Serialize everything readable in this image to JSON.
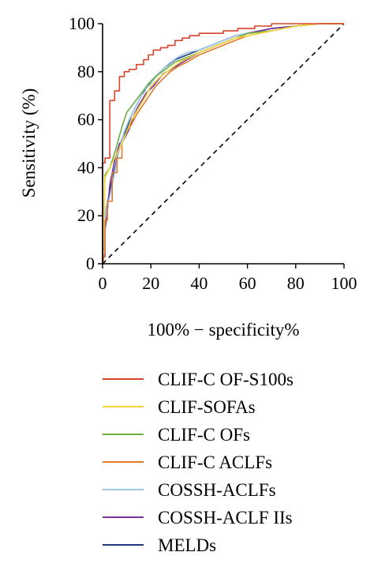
{
  "chart_data": {
    "type": "line",
    "title": "",
    "xlabel": "100% − specificity%",
    "ylabel": "Sensitivity (%)",
    "xlim": [
      0,
      100
    ],
    "ylim": [
      0,
      100
    ],
    "xticks": [
      "0",
      "20",
      "40",
      "60",
      "80",
      "100"
    ],
    "yticks": [
      "0",
      "20",
      "40",
      "60",
      "80",
      "100"
    ],
    "grid": false,
    "legend_position": "bottom",
    "reference_line": {
      "x": [
        0,
        100
      ],
      "y": [
        0,
        100
      ],
      "style": "dashed",
      "color": "#000000"
    },
    "series": [
      {
        "name": "CLIF-C OF-S100s",
        "color": "#D9442B",
        "x": [
          0,
          0,
          1,
          1,
          3,
          3,
          5,
          5,
          7,
          7,
          9,
          9,
          11,
          11,
          14,
          14,
          17,
          17,
          19,
          19,
          21,
          21,
          24,
          24,
          27,
          27,
          30,
          30,
          33,
          33,
          36,
          36,
          40,
          40,
          45,
          45,
          50,
          50,
          56,
          56,
          63,
          63,
          70,
          70,
          80,
          80,
          100
        ],
        "y": [
          0,
          42,
          42,
          44,
          44,
          68,
          68,
          72,
          72,
          78,
          78,
          80,
          80,
          81,
          81,
          83,
          83,
          85,
          85,
          87,
          87,
          89,
          89,
          90,
          90,
          91,
          91,
          93,
          93,
          94,
          94,
          95,
          95,
          96,
          96,
          96,
          96,
          97,
          97,
          98,
          98,
          99,
          99,
          100,
          100,
          100,
          100
        ]
      },
      {
        "name": "CLIF-SOFAs",
        "color": "#F2D43A",
        "x": [
          0,
          1,
          3,
          5,
          8,
          10,
          12,
          15,
          18,
          20,
          24,
          28,
          32,
          36,
          40,
          45,
          50,
          55,
          60,
          70,
          80,
          90,
          100
        ],
        "y": [
          0,
          36,
          40,
          44,
          50,
          55,
          60,
          65,
          70,
          74,
          78,
          81,
          84,
          86,
          88,
          90,
          92,
          94,
          95,
          97,
          99,
          100,
          100
        ]
      },
      {
        "name": "CLIF-C OFs",
        "color": "#6AAE45",
        "x": [
          0,
          1,
          3,
          5,
          8,
          10,
          13,
          16,
          19,
          22,
          26,
          30,
          35,
          40,
          45,
          50,
          55,
          60,
          70,
          80,
          90,
          100
        ],
        "y": [
          0,
          37,
          40,
          46,
          57,
          63,
          67,
          71,
          75,
          78,
          81,
          84,
          86,
          88,
          90,
          92,
          94,
          96,
          97,
          99,
          100,
          100
        ]
      },
      {
        "name": "CLIF-C ACLFs",
        "color": "#E07B2E",
        "x": [
          0,
          1,
          1,
          2,
          2,
          4,
          4,
          6,
          6,
          8,
          8,
          10,
          12,
          14,
          16,
          18,
          20,
          22,
          25,
          28,
          31,
          35,
          40,
          45,
          50,
          55,
          60,
          65,
          70,
          80,
          90,
          100
        ],
        "y": [
          0,
          5,
          18,
          18,
          26,
          26,
          38,
          38,
          44,
          44,
          50,
          55,
          58,
          62,
          65,
          68,
          71,
          74,
          77,
          80,
          82,
          84,
          87,
          89,
          91,
          93,
          95,
          96,
          97,
          99,
          100,
          100
        ]
      },
      {
        "name": "COSSH-ACLFs",
        "color": "#9CC8EA",
        "x": [
          0,
          1,
          3,
          5,
          7,
          9,
          11,
          13,
          15,
          17,
          20,
          23,
          27,
          31,
          35,
          40,
          45,
          50,
          55,
          60,
          70,
          80,
          90,
          100
        ],
        "y": [
          0,
          20,
          28,
          38,
          48,
          55,
          60,
          64,
          68,
          72,
          75,
          79,
          83,
          86,
          88,
          89,
          91,
          93,
          95,
          96,
          97,
          99,
          100,
          100
        ]
      },
      {
        "name": "COSSH-ACLF IIs",
        "color": "#7B2F99",
        "x": [
          0,
          0,
          1,
          1,
          2,
          3,
          5,
          7,
          9,
          11,
          13,
          15,
          18,
          21,
          25,
          30,
          35,
          40,
          45,
          50,
          55,
          60,
          70,
          80,
          90,
          100
        ],
        "y": [
          0,
          3,
          3,
          14,
          22,
          33,
          43,
          50,
          52,
          56,
          62,
          66,
          71,
          74,
          79,
          82,
          85,
          88,
          90,
          92,
          94,
          96,
          98,
          99,
          100,
          100
        ]
      },
      {
        "name": "MELDs",
        "color": "#1F3A7A",
        "x": [
          0,
          1,
          2,
          4,
          6,
          8,
          10,
          12,
          14,
          16,
          18,
          20,
          23,
          26,
          30,
          35,
          40,
          45,
          50,
          55,
          60,
          70,
          80,
          90,
          100
        ],
        "y": [
          0,
          20,
          25,
          35,
          44,
          52,
          56,
          62,
          66,
          70,
          73,
          76,
          79,
          82,
          85,
          87,
          89,
          91,
          93,
          95,
          96,
          98,
          99,
          100,
          100
        ]
      }
    ]
  }
}
